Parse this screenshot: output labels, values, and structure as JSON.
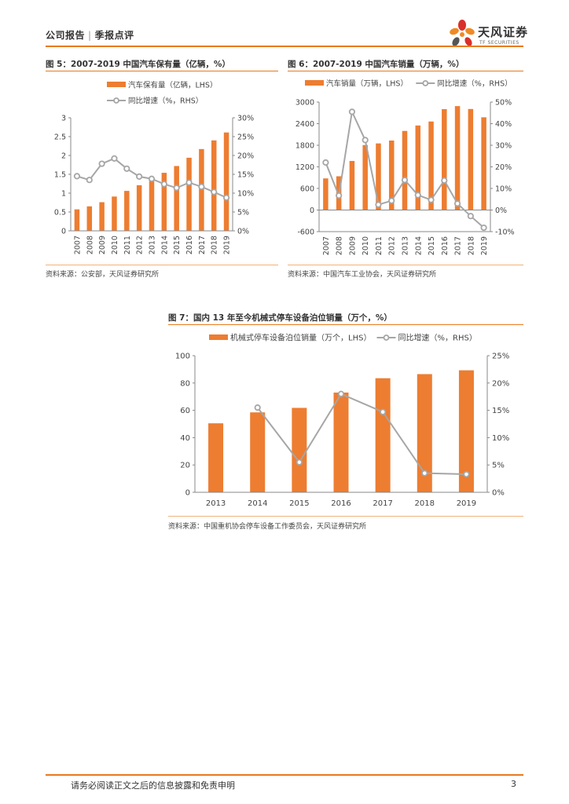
{
  "header": {
    "report_type": "公司报告",
    "category": "季报点评",
    "brand_name": "天风证券",
    "brand_sub": "TF SECURITIES",
    "colors": {
      "accent": "#e8791e",
      "petal_red": "#d9302a",
      "petal_orange": "#f08a24",
      "petal_gray": "#555555"
    }
  },
  "colors": {
    "bar": "#ed7d31",
    "line": "#a6a6a6"
  },
  "figures": [
    {
      "title": "图 5：2007-2019 中国汽车保有量（亿辆，%）",
      "source": "资料来源：公安部，天风证券研究所",
      "legend": {
        "bar": "汽车保有量（亿辆，LHS）",
        "line": "同比增速（%，RHS）"
      }
    },
    {
      "title": "图 6：2007-2019 中国汽车销量（万辆，%）",
      "source": "资料来源：中国汽车工业协会，天风证券研究所",
      "legend": {
        "bar": "汽车销量（万辆，LHS）",
        "line": "同比增速（%，RHS）"
      }
    },
    {
      "title": "图 7：国内 13 年至今机械式停车设备泊位销量（万个，%）",
      "source": "资料来源：中国重机协会停车设备工作委员会，天风证券研究所",
      "legend": {
        "bar": "机械式停车设备泊位销量（万个，LHS）",
        "line": "同比增速（%，RHS）"
      }
    }
  ],
  "chart_data": [
    {
      "type": "bar",
      "title": "2007-2019 中国汽车保有量（亿辆，%）",
      "categories": [
        "2007",
        "2008",
        "2009",
        "2010",
        "2011",
        "2012",
        "2013",
        "2014",
        "2015",
        "2016",
        "2017",
        "2018",
        "2019"
      ],
      "series": [
        {
          "name": "汽车保有量（亿辆，LHS）",
          "type": "bar",
          "axis": "left",
          "values": [
            0.57,
            0.65,
            0.76,
            0.91,
            1.06,
            1.21,
            1.37,
            1.54,
            1.72,
            1.94,
            2.17,
            2.4,
            2.61
          ]
        },
        {
          "name": "同比增速（%，RHS）",
          "type": "line",
          "axis": "right",
          "values": [
            14.5,
            13.5,
            17.8,
            19.2,
            16.5,
            14.4,
            13.8,
            12.4,
            11.4,
            12.8,
            11.7,
            10.3,
            8.8
          ]
        }
      ],
      "left_ticks": [
        "0",
        "0.5",
        "1",
        "1.5",
        "2",
        "2.5",
        "3"
      ],
      "right_ticks": [
        "0%",
        "5%",
        "10%",
        "15%",
        "20%",
        "25%",
        "30%"
      ],
      "ylim_left": [
        0,
        3
      ],
      "ylim_right": [
        0,
        30
      ],
      "x_label_rotated": true
    },
    {
      "type": "bar",
      "title": "2007-2019 中国汽车销量（万辆，%）",
      "categories": [
        "2007",
        "2008",
        "2009",
        "2010",
        "2011",
        "2012",
        "2013",
        "2014",
        "2015",
        "2016",
        "2017",
        "2018",
        "2019"
      ],
      "series": [
        {
          "name": "汽车销量（万辆，LHS）",
          "type": "bar",
          "axis": "left",
          "values": [
            879,
            938,
            1364,
            1806,
            1851,
            1931,
            2198,
            2349,
            2460,
            2803,
            2888,
            2808,
            2577
          ]
        },
        {
          "name": "同比增速（%，RHS）",
          "type": "line",
          "axis": "right",
          "values": [
            22,
            6.7,
            45.5,
            32.4,
            2.5,
            4.3,
            13.9,
            6.9,
            4.7,
            13.7,
            3.0,
            -2.8,
            -8.2
          ]
        }
      ],
      "left_ticks": [
        "-600",
        "0",
        "600",
        "1200",
        "1800",
        "2400",
        "3000"
      ],
      "right_ticks": [
        "-10%",
        "0%",
        "10%",
        "20%",
        "30%",
        "40%",
        "50%"
      ],
      "ylim_left": [
        -600,
        3000
      ],
      "ylim_right": [
        -10,
        50
      ],
      "x_label_rotated": true
    },
    {
      "type": "bar",
      "title": "国内 13 年至今机械式停车设备泊位销量（万个，%）",
      "categories": [
        "2013",
        "2014",
        "2015",
        "2016",
        "2017",
        "2018",
        "2019"
      ],
      "series": [
        {
          "name": "机械式停车设备泊位销量（万个，LHS）",
          "type": "bar",
          "axis": "left",
          "values": [
            50.5,
            58.5,
            61.8,
            73.0,
            83.5,
            86.5,
            89.3
          ]
        },
        {
          "name": "同比增速（%，RHS）",
          "type": "line",
          "axis": "right",
          "values": [
            null,
            15.5,
            5.5,
            18.0,
            14.7,
            3.5,
            3.3
          ]
        }
      ],
      "left_ticks": [
        "0",
        "20",
        "40",
        "60",
        "80",
        "100"
      ],
      "right_ticks": [
        "0%",
        "5%",
        "10%",
        "15%",
        "20%",
        "25%"
      ],
      "ylim_left": [
        0,
        100
      ],
      "ylim_right": [
        0,
        25
      ],
      "x_label_rotated": false
    }
  ],
  "footer": {
    "disclaimer": "请务必阅读正文之后的信息披露和免责申明",
    "page_number": "3"
  }
}
